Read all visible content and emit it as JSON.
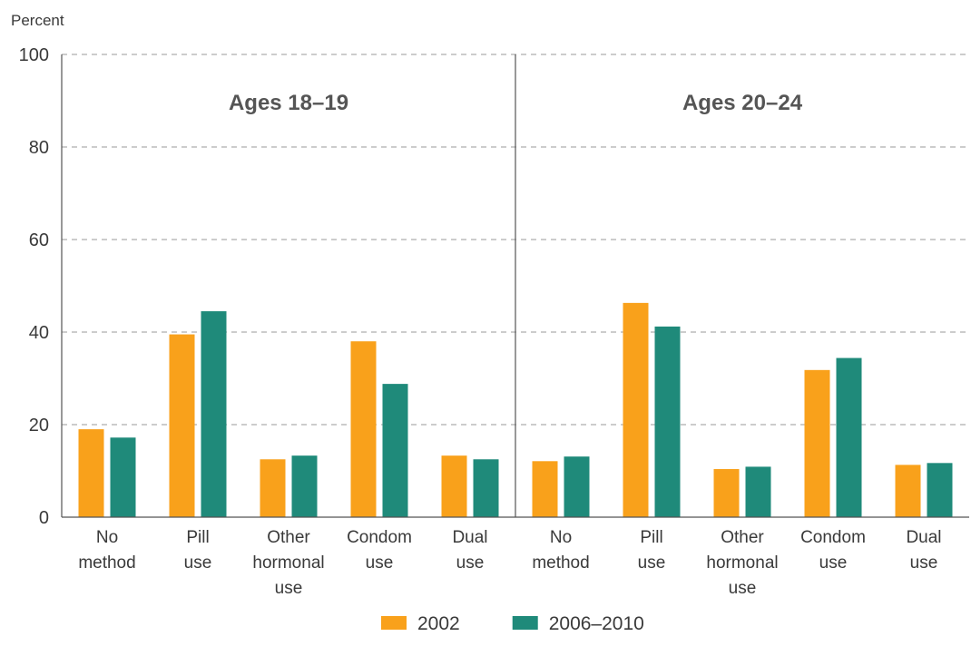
{
  "chart_data": {
    "type": "bar",
    "ylabel": "Percent",
    "ylim": [
      0,
      100
    ],
    "yticks": [
      0,
      20,
      40,
      60,
      80,
      100
    ],
    "grid": true,
    "legend_placement": "bottom",
    "colors": {
      "2002": "#F9A11B",
      "2006–2010": "#1F8A7A"
    },
    "series_names": [
      "2002",
      "2006–2010"
    ],
    "categories": [
      [
        "No",
        "method"
      ],
      [
        "Pill",
        "use"
      ],
      [
        "Other",
        "hormonal",
        "use"
      ],
      [
        "Condom",
        "use"
      ],
      [
        "Dual",
        "use"
      ]
    ],
    "panels": [
      {
        "title": "Ages 18–19",
        "series": [
          {
            "name": "2002",
            "values": [
              19,
              39.5,
              12.5,
              38,
              13.3
            ]
          },
          {
            "name": "2006–2010",
            "values": [
              17.2,
              44.5,
              13.3,
              28.8,
              12.5
            ]
          }
        ]
      },
      {
        "title": "Ages 20–24",
        "series": [
          {
            "name": "2002",
            "values": [
              12.1,
              46.3,
              10.4,
              31.8,
              11.3
            ]
          },
          {
            "name": "2006–2010",
            "values": [
              13.1,
              41.2,
              10.9,
              34.4,
              11.7
            ]
          }
        ]
      }
    ]
  }
}
